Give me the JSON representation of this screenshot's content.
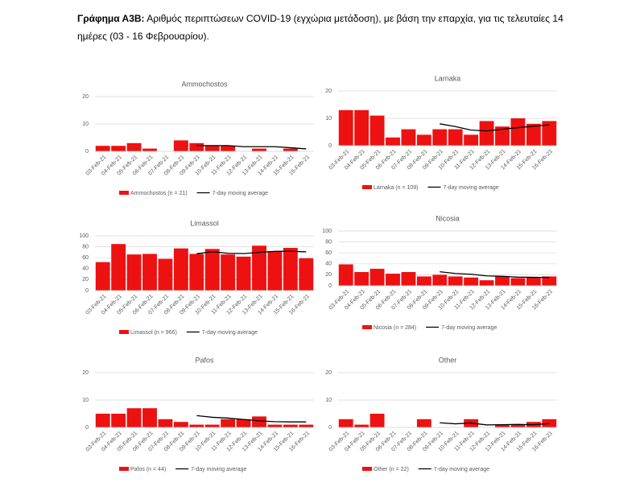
{
  "caption": {
    "label": "Γράφημα Α3Β:",
    "text": "Αριθμός περιπτώσεων COVID-19 (εγχώρια μετάδοση), με βάση την επαρχία, για τις τελευταίες 14 ημέρες (03 - 16 Φεβρουαρίου)."
  },
  "chart_data": [
    {
      "type": "bar",
      "title": "Ammochostos",
      "categories": [
        "03-Feb-21",
        "04-Feb-21",
        "05-Feb-21",
        "06-Feb-21",
        "07-Feb-21",
        "08-Feb-21",
        "09-Feb-21",
        "10-Feb-21",
        "11-Feb-21",
        "12-Feb-21",
        "13-Feb-21",
        "14-Feb-21",
        "15-Feb-21",
        "16-Feb-21"
      ],
      "series": [
        {
          "name": "Ammochostos (n = 21)",
          "type": "bar",
          "color": "#ee1111",
          "values": [
            2,
            2,
            3,
            1,
            0,
            4,
            3,
            2,
            2,
            0,
            1,
            0,
            1,
            0
          ]
        },
        {
          "name": "7-day moving average",
          "type": "line",
          "color": "#000000",
          "values": [
            null,
            null,
            null,
            null,
            null,
            null,
            2.1,
            2.1,
            2.1,
            1.7,
            1.7,
            1.7,
            1.3,
            0.9
          ]
        }
      ],
      "ylim": [
        0,
        20
      ],
      "yticks": [
        0,
        10,
        20
      ],
      "grid": true
    },
    {
      "type": "bar",
      "title": "Larnaka",
      "categories": [
        "03-Feb-21",
        "04-Feb-21",
        "05-Feb-21",
        "06-Feb-21",
        "07-Feb-21",
        "08-Feb-21",
        "09-Feb-21",
        "10-Feb-21",
        "11-Feb-21",
        "12-Feb-21",
        "13-Feb-21",
        "14-Feb-21",
        "15-Feb-21",
        "16-Feb-21"
      ],
      "series": [
        {
          "name": "Larnaka (n = 109)",
          "type": "bar",
          "color": "#ee1111",
          "values": [
            13,
            13,
            11,
            3,
            6,
            4,
            6,
            6,
            4,
            9,
            7,
            10,
            8,
            9
          ]
        },
        {
          "name": "7-day moving average",
          "type": "line",
          "color": "#000000",
          "values": [
            null,
            null,
            null,
            null,
            null,
            null,
            8.0,
            7.0,
            5.7,
            5.4,
            6.0,
            6.6,
            7.1,
            7.6
          ]
        }
      ],
      "ylim": [
        0,
        20
      ],
      "yticks": [
        0,
        10,
        20
      ],
      "grid": true
    },
    {
      "type": "bar",
      "title": "Limassol",
      "categories": [
        "03-Feb-21",
        "04-Feb-21",
        "05-Feb-21",
        "06-Feb-21",
        "07-Feb-21",
        "08-Feb-21",
        "09-Feb-21",
        "10-Feb-21",
        "11-Feb-21",
        "12-Feb-21",
        "13-Feb-21",
        "14-Feb-21",
        "15-Feb-21",
        "16-Feb-21"
      ],
      "series": [
        {
          "name": "Limassol (n = 966)",
          "type": "bar",
          "color": "#ee1111",
          "values": [
            52,
            85,
            66,
            67,
            58,
            77,
            67,
            76,
            66,
            62,
            82,
            72,
            78,
            59
          ]
        },
        {
          "name": "7-day moving average",
          "type": "line",
          "color": "#000000",
          "values": [
            null,
            null,
            null,
            null,
            null,
            null,
            67.4,
            70.9,
            68.1,
            67.6,
            69.7,
            71.7,
            71.9,
            70.7
          ]
        }
      ],
      "ylim": [
        0,
        100
      ],
      "yticks": [
        0,
        20,
        40,
        60,
        80,
        100
      ],
      "grid": true
    },
    {
      "type": "bar",
      "title": "Nicosia",
      "categories": [
        "03-Feb-21",
        "04-Feb-21",
        "05-Feb-21",
        "06-Feb-21",
        "07-Feb-21",
        "08-Feb-21",
        "09-Feb-21",
        "10-Feb-21",
        "11-Feb-21",
        "12-Feb-21",
        "13-Feb-21",
        "14-Feb-21",
        "15-Feb-21",
        "16-Feb-21"
      ],
      "series": [
        {
          "name": "Nicosia (n = 284)",
          "type": "bar",
          "color": "#ee1111",
          "values": [
            39,
            25,
            31,
            22,
            25,
            17,
            20,
            17,
            15,
            10,
            17,
            14,
            15,
            17
          ]
        },
        {
          "name": "7-day moving average",
          "type": "line",
          "color": "#000000",
          "values": [
            null,
            null,
            null,
            null,
            null,
            null,
            25.6,
            22.4,
            21.0,
            18.0,
            17.3,
            15.7,
            15.4,
            15.0
          ]
        }
      ],
      "ylim": [
        0,
        100
      ],
      "yticks": [
        0,
        20,
        40,
        60,
        80,
        100
      ],
      "grid": true
    },
    {
      "type": "bar",
      "title": "Pafos",
      "categories": [
        "03-Feb-21",
        "04-Feb-21",
        "05-Feb-21",
        "06-Feb-21",
        "07-Feb-21",
        "08-Feb-21",
        "09-Feb-21",
        "10-Feb-21",
        "11-Feb-21",
        "12-Feb-21",
        "13-Feb-21",
        "14-Feb-21",
        "15-Feb-21",
        "16-Feb-21"
      ],
      "series": [
        {
          "name": "Pafos (n = 44)",
          "type": "bar",
          "color": "#ee1111",
          "values": [
            5,
            5,
            7,
            7,
            3,
            2,
            1,
            1,
            3,
            3,
            4,
            1,
            1,
            1
          ]
        },
        {
          "name": "7-day moving average",
          "type": "line",
          "color": "#000000",
          "values": [
            null,
            null,
            null,
            null,
            null,
            null,
            4.3,
            3.7,
            3.4,
            2.9,
            2.4,
            2.1,
            2.0,
            2.0
          ]
        }
      ],
      "ylim": [
        0,
        20
      ],
      "yticks": [
        0,
        10,
        20
      ],
      "grid": true
    },
    {
      "type": "bar",
      "title": "Other",
      "categories": [
        "03-Feb-21",
        "04-Feb-21",
        "05-Feb-21",
        "06-Feb-21",
        "07-Feb-21",
        "08-Feb-21",
        "09-Feb-21",
        "10-Feb-21",
        "11-Feb-21",
        "12-Feb-21",
        "13-Feb-21",
        "14-Feb-21",
        "15-Feb-21",
        "16-Feb-21"
      ],
      "series": [
        {
          "name": "Other (n = 22)",
          "type": "bar",
          "color": "#ee1111",
          "values": [
            3,
            1,
            5,
            0,
            0,
            3,
            0,
            0,
            3,
            0,
            1,
            1,
            2,
            3
          ]
        },
        {
          "name": "7-day moving average",
          "type": "line",
          "color": "#000000",
          "values": [
            null,
            null,
            null,
            null,
            null,
            null,
            1.7,
            1.3,
            1.6,
            0.9,
            1.0,
            1.1,
            1.0,
            1.4
          ]
        }
      ],
      "ylim": [
        0,
        20
      ],
      "yticks": [
        0,
        10,
        20
      ],
      "grid": true
    }
  ]
}
